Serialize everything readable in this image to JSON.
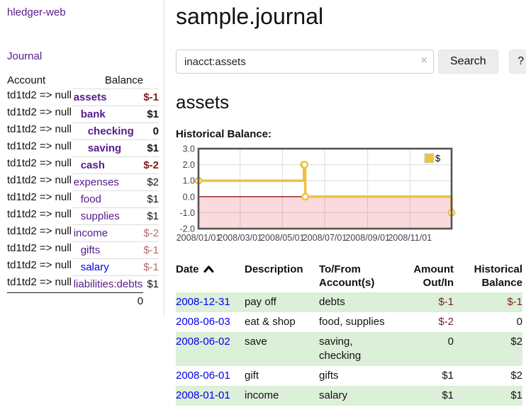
{
  "colors": {
    "link_purple": "#551a8b",
    "link_blue": "#0000ee",
    "negative_dark": "#7f1c1c",
    "negative_light": "#b36b6b",
    "row_stripe_green": "#dcefd8",
    "button_bg": "#ededed",
    "divider": "#dddddd"
  },
  "sidebar": {
    "brand": "hledger-web",
    "nav": {
      "journal": "Journal"
    },
    "accounts_table": {
      "headers": {
        "account": "Account",
        "balance": "Balance"
      },
      "rows": [
        {
          "name": "assets",
          "indent": 0,
          "bold": true,
          "balance": "$-1",
          "neg": "dark"
        },
        {
          "name": "bank",
          "indent": 1,
          "bold": true,
          "balance": "$1",
          "neg": "none"
        },
        {
          "name": "checking",
          "indent": 2,
          "bold": true,
          "balance": "0",
          "neg": "none"
        },
        {
          "name": "saving",
          "indent": 2,
          "bold": true,
          "balance": "$1",
          "neg": "none"
        },
        {
          "name": "cash",
          "indent": 1,
          "bold": true,
          "balance": "$-2",
          "neg": "dark"
        },
        {
          "name": "expenses",
          "indent": 0,
          "bold": false,
          "balance": "$2",
          "neg": "none"
        },
        {
          "name": "food",
          "indent": 1,
          "bold": false,
          "balance": "$1",
          "neg": "none"
        },
        {
          "name": "supplies",
          "indent": 1,
          "bold": false,
          "balance": "$1",
          "neg": "none"
        },
        {
          "name": "income",
          "indent": 0,
          "bold": false,
          "balance": "$-2",
          "neg": "light"
        },
        {
          "name": "gifts",
          "indent": 1,
          "bold": false,
          "balance": "$-1",
          "neg": "light"
        },
        {
          "name": "salary",
          "indent": 1,
          "bold": false,
          "balance": "$-1",
          "neg": "light",
          "link_style": "blue"
        },
        {
          "name": "liabilities:debts",
          "indent": 0,
          "bold": false,
          "balance": "$1",
          "neg": "none"
        }
      ],
      "total": "0"
    }
  },
  "header": {
    "title": "sample.journal"
  },
  "search": {
    "value": "inacct:assets",
    "clear_icon": "×",
    "button_label": "Search",
    "help_label": "?"
  },
  "account_page": {
    "heading": "assets",
    "chart_label": "Historical Balance:"
  },
  "chart_data": {
    "type": "line",
    "step": true,
    "title": "Historical Balance of assets",
    "x_range": [
      "2008-01-01",
      "2008-12-31"
    ],
    "ylim": [
      -2,
      3
    ],
    "yticks": [
      "3.0",
      "2.0",
      "1.0",
      "0.0",
      "-1.0",
      "-2.0"
    ],
    "ytick_values": [
      3,
      2,
      1,
      0,
      -1,
      -2
    ],
    "xticks": [
      {
        "date": "2008-01-01",
        "label": "2008/01/01"
      },
      {
        "date": "2008-03-01",
        "label": "2008/03/01"
      },
      {
        "date": "2008-05-01",
        "label": "2008/05/01"
      },
      {
        "date": "2008-07-01",
        "label": "2008/07/01"
      },
      {
        "date": "2008-09-01",
        "label": "2008/09/01"
      },
      {
        "date": "2008-11-01",
        "label": "2008/11/01"
      }
    ],
    "series": [
      {
        "name": "$",
        "color": "#edc240",
        "points": [
          [
            "2008-01-01",
            1
          ],
          [
            "2008-06-01",
            2
          ],
          [
            "2008-06-02",
            2
          ],
          [
            "2008-06-03",
            0
          ],
          [
            "2008-12-31",
            -1
          ]
        ]
      }
    ],
    "legend": {
      "label": "$",
      "position": "top-right"
    },
    "grid": true,
    "grid_color": "#dcdcdc",
    "border_color": "#545454",
    "zero_line_color": "#8b1a1a",
    "negative_region_fill": "rgba(220,10,30,0.15)"
  },
  "register": {
    "columns": [
      {
        "label": "Date",
        "align": "left",
        "sorted": "asc"
      },
      {
        "label": "Description",
        "align": "left"
      },
      {
        "label": "To/From Account(s)",
        "align": "left"
      },
      {
        "label": "Amount Out/In",
        "align": "right"
      },
      {
        "label": "Historical Balance",
        "align": "right"
      }
    ],
    "rows": [
      {
        "date": "2008-12-31",
        "description": "pay off",
        "accounts": "debts",
        "amount": "$-1",
        "amount_neg": true,
        "balance": "$-1",
        "balance_neg": true
      },
      {
        "date": "2008-06-03",
        "description": "eat & shop",
        "accounts": "food, supplies",
        "amount": "$-2",
        "amount_neg": true,
        "balance": "0",
        "balance_neg": false
      },
      {
        "date": "2008-06-02",
        "description": "save",
        "accounts": "saving, checking",
        "amount": "0",
        "amount_neg": false,
        "balance": "$2",
        "balance_neg": false
      },
      {
        "date": "2008-06-01",
        "description": "gift",
        "accounts": "gifts",
        "amount": "$1",
        "amount_neg": false,
        "balance": "$2",
        "balance_neg": false
      },
      {
        "date": "2008-01-01",
        "description": "income",
        "accounts": "salary",
        "amount": "$1",
        "amount_neg": false,
        "balance": "$1",
        "balance_neg": false
      }
    ]
  }
}
